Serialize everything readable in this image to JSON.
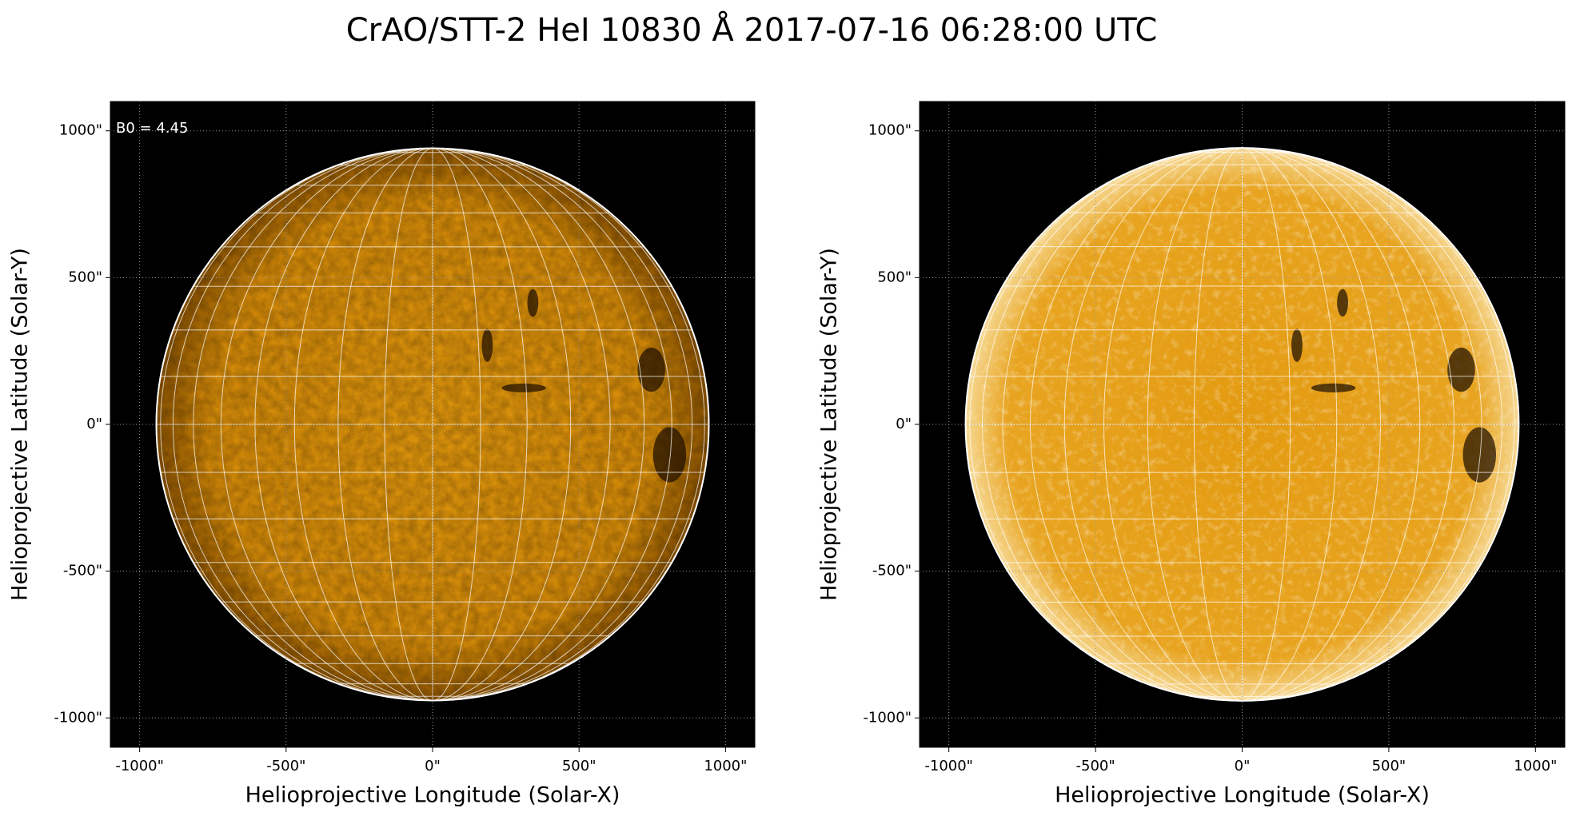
{
  "title": "CrAO/STT-2 HeI 10830 Å 2017-07-16 06:28:00 UTC",
  "chart_data": [
    {
      "type": "image",
      "annotation": "B0 = 4.45",
      "variant": "plain",
      "xlabel": "Helioprojective Longitude (Solar-X)",
      "ylabel": "Helioprojective Latitude (Solar-Y)",
      "xlim": [
        -1100,
        1100
      ],
      "ylim": [
        -1100,
        1100
      ],
      "disk_radius": 943,
      "grid": true,
      "xticks": [
        {
          "value": -1000,
          "label": "-1000\""
        },
        {
          "value": -500,
          "label": "-500\""
        },
        {
          "value": 0,
          "label": "0\""
        },
        {
          "value": 500,
          "label": "500\""
        },
        {
          "value": 1000,
          "label": "1000\""
        }
      ],
      "yticks": [
        {
          "value": -1000,
          "label": "-1000\""
        },
        {
          "value": -500,
          "label": "-500\""
        },
        {
          "value": 0,
          "label": "0\""
        },
        {
          "value": 500,
          "label": "500\""
        },
        {
          "value": 1000,
          "label": "1000\""
        }
      ]
    },
    {
      "type": "image",
      "variant": "enhanced",
      "xlabel": "Helioprojective Longitude (Solar-X)",
      "ylabel": "Helioprojective Latitude (Solar-Y)",
      "xlim": [
        -1100,
        1100
      ],
      "ylim": [
        -1100,
        1100
      ],
      "disk_radius": 943,
      "grid": true,
      "xticks": [
        {
          "value": -1000,
          "label": "-1000\""
        },
        {
          "value": -500,
          "label": "-500\""
        },
        {
          "value": 0,
          "label": "0\""
        },
        {
          "value": 500,
          "label": "500\""
        },
        {
          "value": 1000,
          "label": "1000\""
        }
      ],
      "yticks": [
        {
          "value": -1000,
          "label": "-1000\""
        },
        {
          "value": -500,
          "label": "-500\""
        },
        {
          "value": 0,
          "label": "0\""
        },
        {
          "value": 500,
          "label": "500\""
        },
        {
          "value": 1000,
          "label": "1000\""
        }
      ]
    }
  ]
}
